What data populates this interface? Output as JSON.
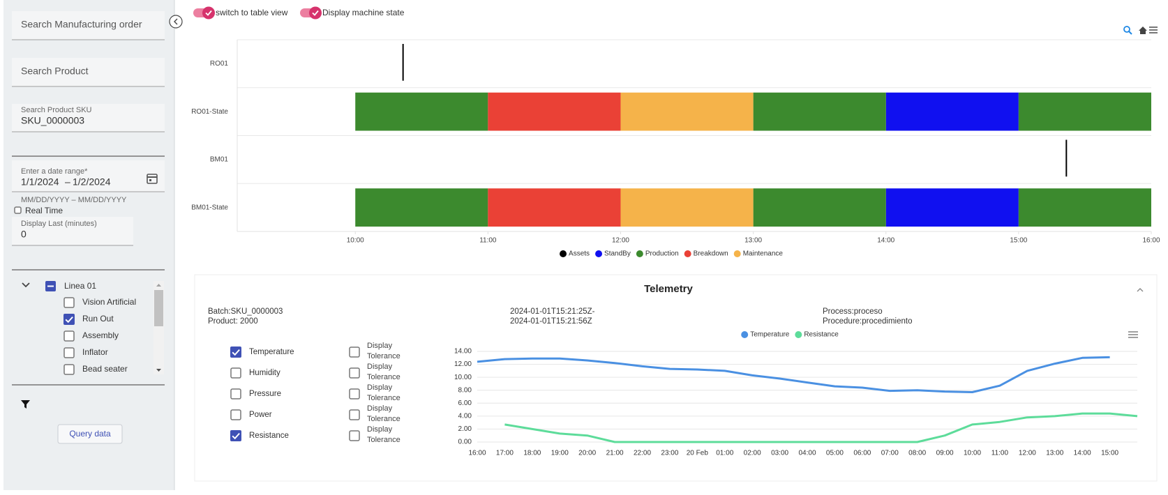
{
  "sidebar": {
    "search_order": "Search Manufacturing order",
    "search_product": "Search Product",
    "sku_label": "Search Product SKU",
    "sku_value": "SKU_0000003",
    "date_label": "Enter a date range*",
    "date_start": "1/1/2024",
    "date_sep": "–",
    "date_end": "1/2/2024",
    "date_hint": "MM/DD/YYYY – MM/DD/YYYY",
    "real_time": {
      "label": "Real Time",
      "checked": false
    },
    "display_last_label": "Display Last (minutes)",
    "display_last_value": "0",
    "tree": {
      "root": "Linea 01",
      "items": [
        {
          "label": "Vision Artificial",
          "checked": false
        },
        {
          "label": "Run Out",
          "checked": true
        },
        {
          "label": "Assembly",
          "checked": false
        },
        {
          "label": "Inflator",
          "checked": false
        },
        {
          "label": "Bead seater",
          "checked": false
        }
      ]
    },
    "query_button": "Query data"
  },
  "toggles": [
    {
      "label": "switch to table view",
      "on": true
    },
    {
      "label": "Display machine state",
      "on": true
    }
  ],
  "telemetry_panel": {
    "batch": "Batch:SKU_0000003",
    "product": "Product: 2000",
    "date_from": "2024-01-01T15:21:25Z-",
    "date_to": "2024-01-01T15:21:56Z",
    "process": "Process:proceso",
    "procedure": "Procedure:procedimiento",
    "measures": [
      {
        "label": "Temperature",
        "checked": true,
        "tolerance": "Display Tolerance",
        "tolerance_checked": false
      },
      {
        "label": "Humidity",
        "checked": false,
        "tolerance": "Display Tolerance",
        "tolerance_checked": false
      },
      {
        "label": "Pressure",
        "checked": false,
        "tolerance": "Display Tolerance",
        "tolerance_checked": false
      },
      {
        "label": "Power",
        "checked": false,
        "tolerance": "Display Tolerance",
        "tolerance_checked": false
      },
      {
        "label": "Resistance",
        "checked": true,
        "tolerance": "Display Tolerance",
        "tolerance_checked": false
      }
    ]
  },
  "chart_data": [
    {
      "type": "timeline",
      "categories": [
        "RO01",
        "RO01-State",
        "BM01",
        "BM01-State"
      ],
      "xlim": [
        9.11,
        16
      ],
      "xticks": [
        {
          "value": 10,
          "label": "10:00"
        },
        {
          "value": 11,
          "label": "11:00"
        },
        {
          "value": 12,
          "label": "12:00"
        },
        {
          "value": 13,
          "label": "13:00"
        },
        {
          "value": 14,
          "label": "14:00"
        },
        {
          "value": 15,
          "label": "15:00"
        },
        {
          "value": 16,
          "label": "16:00"
        }
      ],
      "legend": "bottom",
      "series": [
        {
          "name": "Assets",
          "color": "#000000",
          "points": [
            {
              "category": "RO01",
              "x": 10.36
            },
            {
              "category": "BM01",
              "x": 15.36
            }
          ]
        },
        {
          "name": "StandBy",
          "color": "#1010f0",
          "ranges": [
            {
              "category": "RO01-State",
              "start": 14,
              "end": 15
            },
            {
              "category": "BM01-State",
              "start": 14,
              "end": 15
            }
          ]
        },
        {
          "name": "Production",
          "color": "#3c8a2e",
          "ranges": [
            {
              "category": "RO01-State",
              "start": 10,
              "end": 11
            },
            {
              "category": "RO01-State",
              "start": 13,
              "end": 14
            },
            {
              "category": "RO01-State",
              "start": 15,
              "end": 16
            },
            {
              "category": "BM01-State",
              "start": 10,
              "end": 11
            },
            {
              "category": "BM01-State",
              "start": 13,
              "end": 14
            },
            {
              "category": "BM01-State",
              "start": 15,
              "end": 16
            }
          ]
        },
        {
          "name": "Breakdown",
          "color": "#ea4136",
          "ranges": [
            {
              "category": "RO01-State",
              "start": 11,
              "end": 12
            },
            {
              "category": "BM01-State",
              "start": 11,
              "end": 12
            }
          ]
        },
        {
          "name": "Maintenance",
          "color": "#f5b34a",
          "ranges": [
            {
              "category": "RO01-State",
              "start": 12,
              "end": 13
            },
            {
              "category": "BM01-State",
              "start": 12,
              "end": 13
            }
          ]
        }
      ]
    },
    {
      "type": "line",
      "title": "Telemetry",
      "categories": [
        "16:00",
        "17:00",
        "18:00",
        "19:00",
        "20:00",
        "21:00",
        "22:00",
        "23:00",
        "20 Feb",
        "01:00",
        "02:00",
        "03:00",
        "04:00",
        "05:00",
        "06:00",
        "07:00",
        "08:00",
        "09:00",
        "10:00",
        "11:00",
        "12:00",
        "13:00",
        "14:00",
        "15:00",
        null
      ],
      "ylim": [
        0,
        14
      ],
      "yticks": [
        {
          "value": 0,
          "label": "0.00"
        },
        {
          "value": 2,
          "label": "2.00"
        },
        {
          "value": 4,
          "label": "4.00"
        },
        {
          "value": 6,
          "label": "6.00"
        },
        {
          "value": 8,
          "label": "8.00"
        },
        {
          "value": 10,
          "label": "10.00"
        },
        {
          "value": 12,
          "label": "12.00"
        },
        {
          "value": 14,
          "label": "14.00"
        }
      ],
      "grid": true,
      "legend": "top",
      "series": [
        {
          "name": "Temperature",
          "color": "#4a90e2",
          "values": [
            12.4,
            12.8,
            12.9,
            12.9,
            12.6,
            12.2,
            11.7,
            11.3,
            11.2,
            11.0,
            10.3,
            9.8,
            9.2,
            8.6,
            8.4,
            7.9,
            8.0,
            7.8,
            7.7,
            8.7,
            11.0,
            12.1,
            13.0,
            13.1,
            null
          ]
        },
        {
          "name": "Resistance",
          "color": "#5ddc9a",
          "values": [
            null,
            2.7,
            2.0,
            1.3,
            1.0,
            0,
            0,
            0,
            0,
            0,
            0,
            0,
            0,
            0,
            0,
            0,
            0,
            1.0,
            2.7,
            3.1,
            3.8,
            4.0,
            4.4,
            4.4,
            4.0
          ]
        }
      ]
    }
  ]
}
